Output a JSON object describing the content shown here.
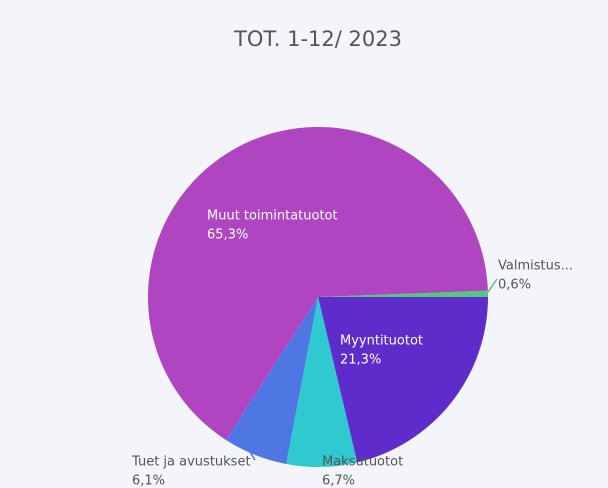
{
  "chart_data": {
    "type": "pie",
    "title": "TOT. 1-12/ 2023",
    "categories": [
      "Valmistus...",
      "Myyntituotot",
      "Maksutuotot",
      "Tuet ja avustukset",
      "Muut toimintatuotot"
    ],
    "values": [
      0.6,
      21.3,
      6.7,
      6.1,
      65.3
    ],
    "value_labels": [
      "0,6%",
      "21,3%",
      "6,7%",
      "6,1%",
      "65,3%"
    ],
    "colors": [
      "#52c97c",
      "#5e2ccb",
      "#2ecad0",
      "#4f77e3",
      "#af45c1"
    ]
  }
}
